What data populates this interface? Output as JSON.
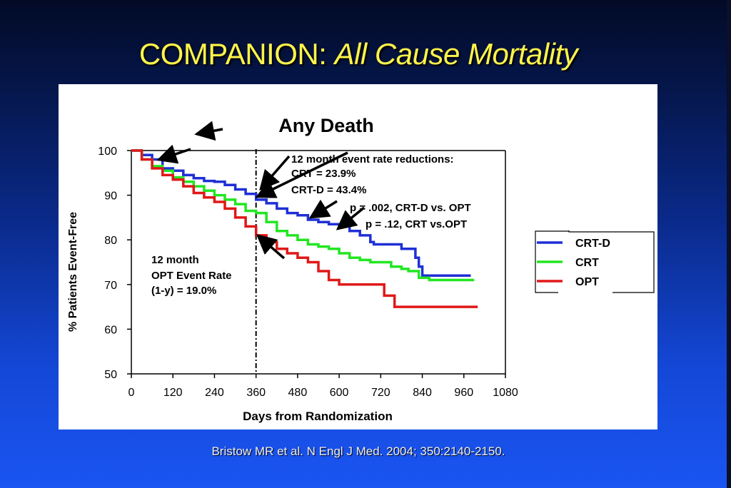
{
  "slide": {
    "title_main": "COMPANION:",
    "title_italic": "All Cause Mortality",
    "citation": "Bristow MR et al.  N Engl J Med. 2004; 350:2140-2150."
  },
  "chart_data": {
    "type": "line",
    "title": "Any Death",
    "xlabel": "Days from Randomization",
    "ylabel": "% Patients Event-Free",
    "xlim": [
      0,
      1080
    ],
    "ylim": [
      50,
      100
    ],
    "xticks": [
      0,
      120,
      240,
      360,
      480,
      600,
      720,
      840,
      960,
      1080
    ],
    "yticks": [
      50,
      60,
      70,
      80,
      90,
      100
    ],
    "grid": false,
    "legend_position": "right",
    "reference_line_x": 360,
    "series": [
      {
        "name": "CRT-D",
        "color": "#1f2fd6",
        "points": [
          [
            0,
            100
          ],
          [
            30,
            99
          ],
          [
            60,
            98
          ],
          [
            90,
            96
          ],
          [
            120,
            95.5
          ],
          [
            150,
            94.5
          ],
          [
            180,
            93.8
          ],
          [
            210,
            93.2
          ],
          [
            240,
            93
          ],
          [
            270,
            92.3
          ],
          [
            300,
            91.3
          ],
          [
            330,
            90.3
          ],
          [
            360,
            89
          ],
          [
            390,
            88.2
          ],
          [
            420,
            87
          ],
          [
            450,
            86
          ],
          [
            480,
            85.5
          ],
          [
            510,
            84.5
          ],
          [
            540,
            84
          ],
          [
            570,
            83.5
          ],
          [
            600,
            83
          ],
          [
            630,
            82
          ],
          [
            660,
            81
          ],
          [
            690,
            79.5
          ],
          [
            700,
            79
          ],
          [
            760,
            79
          ],
          [
            780,
            78
          ],
          [
            800,
            78
          ],
          [
            820,
            76
          ],
          [
            830,
            74
          ],
          [
            840,
            72
          ],
          [
            870,
            72
          ],
          [
            900,
            72
          ],
          [
            940,
            72
          ],
          [
            980,
            72
          ]
        ]
      },
      {
        "name": "CRT",
        "color": "#22e622",
        "points": [
          [
            0,
            100
          ],
          [
            30,
            98
          ],
          [
            60,
            96.5
          ],
          [
            90,
            95.5
          ],
          [
            120,
            94
          ],
          [
            150,
            93
          ],
          [
            180,
            92
          ],
          [
            210,
            91
          ],
          [
            240,
            90
          ],
          [
            270,
            89
          ],
          [
            300,
            88
          ],
          [
            330,
            86.5
          ],
          [
            360,
            86
          ],
          [
            390,
            84
          ],
          [
            420,
            82
          ],
          [
            450,
            81
          ],
          [
            480,
            80
          ],
          [
            510,
            79
          ],
          [
            540,
            78.5
          ],
          [
            570,
            78
          ],
          [
            600,
            77
          ],
          [
            630,
            76
          ],
          [
            660,
            75.5
          ],
          [
            690,
            75
          ],
          [
            720,
            75
          ],
          [
            750,
            74
          ],
          [
            780,
            73.5
          ],
          [
            800,
            73
          ],
          [
            830,
            71.5
          ],
          [
            860,
            71
          ],
          [
            900,
            71
          ],
          [
            950,
            71
          ],
          [
            990,
            71
          ]
        ]
      },
      {
        "name": "OPT",
        "color": "#e01818",
        "points": [
          [
            0,
            100
          ],
          [
            30,
            98
          ],
          [
            60,
            96
          ],
          [
            90,
            94.5
          ],
          [
            120,
            93.5
          ],
          [
            150,
            92
          ],
          [
            180,
            90.5
          ],
          [
            210,
            89.5
          ],
          [
            240,
            88.5
          ],
          [
            270,
            87
          ],
          [
            300,
            85
          ],
          [
            330,
            83
          ],
          [
            360,
            81
          ],
          [
            390,
            79.5
          ],
          [
            420,
            78
          ],
          [
            450,
            77
          ],
          [
            480,
            76
          ],
          [
            510,
            75
          ],
          [
            540,
            73
          ],
          [
            570,
            71
          ],
          [
            600,
            70
          ],
          [
            630,
            70
          ],
          [
            660,
            70
          ],
          [
            700,
            70
          ],
          [
            720,
            70
          ],
          [
            730,
            67.5
          ],
          [
            760,
            65
          ],
          [
            800,
            65
          ],
          [
            850,
            65
          ],
          [
            900,
            65
          ],
          [
            960,
            65
          ],
          [
            1000,
            65
          ]
        ]
      }
    ],
    "annotations": {
      "reductions": [
        "12 month event rate reductions:",
        "CRT = 23.9%",
        "CRT-D = 43.4%"
      ],
      "p_values": [
        "p = .002, CRT-D vs. OPT",
        "p = .12, CRT vs.OPT"
      ],
      "opt_rate": [
        "12 month",
        "OPT Event Rate",
        "(1-y) = 19.0%"
      ]
    }
  }
}
